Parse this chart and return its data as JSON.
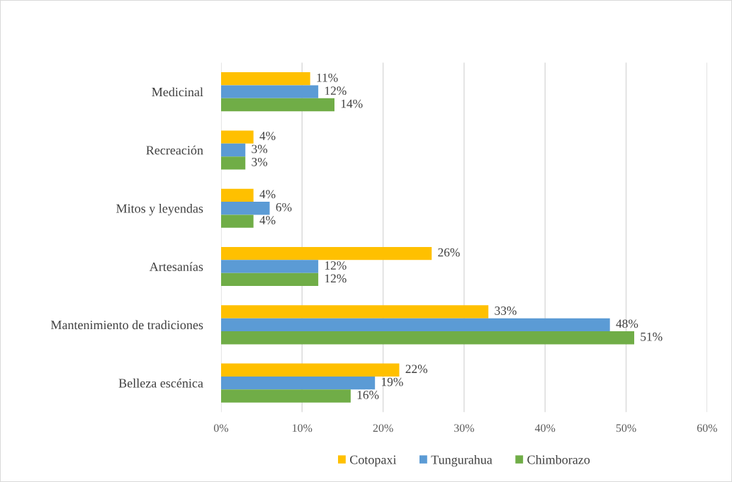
{
  "chart_data": {
    "type": "bar",
    "orientation": "horizontal",
    "categories": [
      "Medicinal",
      "Recreación",
      "Mitos y leyendas",
      "Artesanías",
      "Mantenimiento de tradiciones",
      "Belleza escénica"
    ],
    "series": [
      {
        "name": "Cotopaxi",
        "color": "#ffc000",
        "values": [
          11,
          4,
          4,
          26,
          33,
          22
        ],
        "value_labels": [
          "11%",
          "4%",
          "4%",
          "26%",
          "33%",
          "22%"
        ]
      },
      {
        "name": "Tungurahua",
        "color": "#5b9bd5",
        "values": [
          12,
          3,
          6,
          12,
          48,
          19
        ],
        "value_labels": [
          "12%",
          "3%",
          "6%",
          "12%",
          "48%",
          "19%"
        ]
      },
      {
        "name": "Chimborazo",
        "color": "#70ad47",
        "values": [
          14,
          3,
          4,
          12,
          51,
          16
        ],
        "value_labels": [
          "14%",
          "3%",
          "4%",
          "12%",
          "51%",
          "16%"
        ]
      }
    ],
    "xlim": [
      0,
      60
    ],
    "xticks": [
      {
        "value": 0,
        "label": "0%"
      },
      {
        "value": 10,
        "label": "10%"
      },
      {
        "value": 20,
        "label": "20%"
      },
      {
        "value": 30,
        "label": "30%"
      },
      {
        "value": 40,
        "label": "40%"
      },
      {
        "value": 50,
        "label": "50%"
      },
      {
        "value": 60,
        "label": "60%"
      }
    ],
    "grid": "x",
    "legend": "bottom"
  }
}
